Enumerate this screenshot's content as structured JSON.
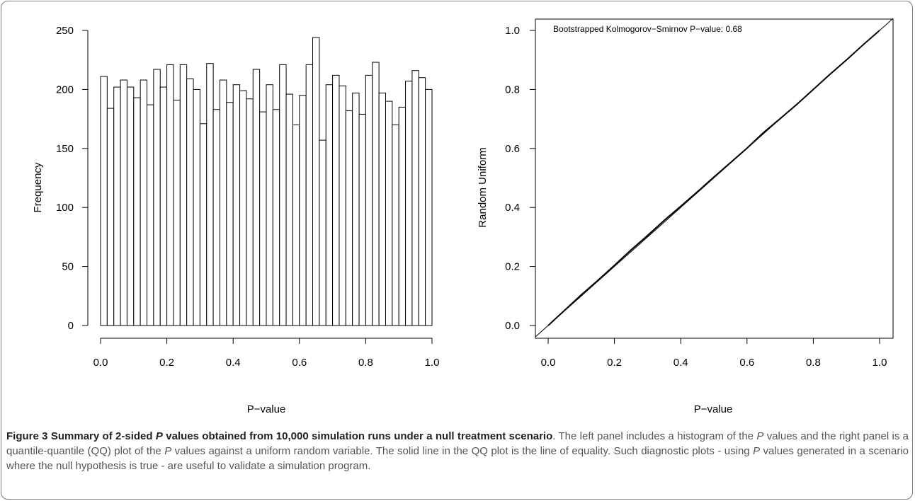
{
  "chart_data": [
    {
      "type": "bar",
      "subtype": "histogram",
      "xlabel": "P−value",
      "ylabel": "Frequency",
      "xlim": [
        0,
        1
      ],
      "ylim": [
        0,
        250
      ],
      "x_ticks": [
        "0.0",
        "0.2",
        "0.4",
        "0.6",
        "0.8",
        "1.0"
      ],
      "y_ticks": [
        "0",
        "50",
        "100",
        "150",
        "200",
        "250"
      ],
      "bin_width": 0.02,
      "values": [
        211,
        184,
        202,
        208,
        202,
        193,
        208,
        187,
        217,
        202,
        221,
        191,
        221,
        209,
        200,
        171,
        222,
        183,
        208,
        189,
        204,
        199,
        192,
        217,
        181,
        204,
        183,
        221,
        196,
        170,
        195,
        221,
        244,
        157,
        204,
        212,
        203,
        182,
        197,
        179,
        212,
        223,
        197,
        190,
        170,
        185,
        207,
        216,
        210,
        200
      ],
      "grid": false
    },
    {
      "type": "line",
      "subtype": "qq-plot",
      "xlabel": "P−value",
      "ylabel": "Random Uniform",
      "xlim": [
        0,
        1
      ],
      "ylim": [
        0,
        1
      ],
      "x_ticks": [
        "0.0",
        "0.2",
        "0.4",
        "0.6",
        "0.8",
        "1.0"
      ],
      "y_ticks": [
        "0.0",
        "0.2",
        "0.4",
        "0.6",
        "0.8",
        "1.0"
      ],
      "annotation": "Bootstrapped Kolmogorov−Smirnov P−value: 0.68",
      "series": [
        {
          "x": [
            0.0,
            0.05,
            0.1,
            0.15,
            0.2,
            0.25,
            0.3,
            0.35,
            0.4,
            0.45,
            0.5,
            0.55,
            0.6,
            0.65,
            0.7,
            0.75,
            0.8,
            0.85,
            0.9,
            0.95,
            1.0
          ],
          "values": [
            0.0,
            0.052,
            0.104,
            0.153,
            0.204,
            0.256,
            0.305,
            0.356,
            0.404,
            0.453,
            0.503,
            0.552,
            0.601,
            0.654,
            0.701,
            0.749,
            0.8,
            0.851,
            0.9,
            0.951,
            1.0
          ]
        },
        {
          "x": [
            0,
            1
          ],
          "values": [
            0,
            1
          ]
        }
      ],
      "grid": false
    }
  ],
  "caption": {
    "lead_a": "Figure 3 Summary of 2-sided ",
    "lead_p": "P",
    "lead_b": " values obtained from 10,000 simulation runs under a null treatment scenario",
    "t1": ". The left panel includes a histogram of the ",
    "p1": "P",
    "t2": " values and the right panel is a quantile-quantile (QQ) plot of the ",
    "p2": "P",
    "t3": " values against a uniform random variable. The solid line in the QQ plot is the line of equality. Such diagnostic plots - using ",
    "p3": "P",
    "t4": " values generated in a scenario where the null hypothesis is true - are useful to validate a simulation program."
  }
}
